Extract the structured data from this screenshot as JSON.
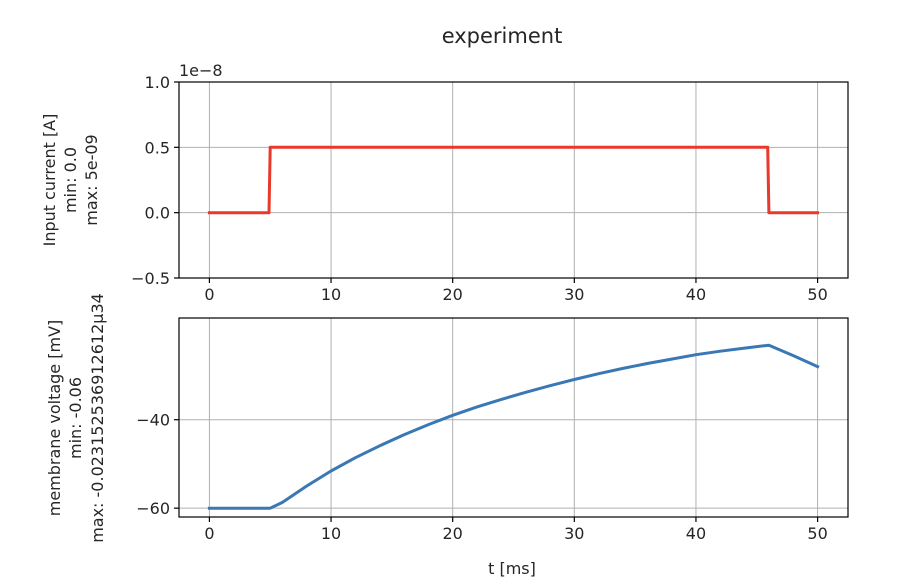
{
  "chart_data": [
    {
      "type": "line",
      "title": "experiment",
      "offset_text": "1e−8",
      "ylabel_lines": [
        "Input current [A]",
        "min: 0.0",
        "max: 5e-09"
      ],
      "xlim": [
        -2.5,
        52.5
      ],
      "ylim": [
        -0.5,
        1.0
      ],
      "xticks": [
        0,
        10,
        20,
        30,
        40,
        50
      ],
      "xtick_labels": [
        "0",
        "10",
        "20",
        "30",
        "40",
        "50"
      ],
      "yticks": [
        -0.5,
        0.0,
        0.5,
        1.0
      ],
      "ytick_labels": [
        "−0.5",
        "0.0",
        "0.5",
        "1.0"
      ],
      "grid": true,
      "series": [
        {
          "color": "#e8392b",
          "x": [
            0,
            4.9,
            5.0,
            45.9,
            46.0,
            50
          ],
          "y": [
            0.0,
            0.0,
            0.5,
            0.5,
            0.0,
            0.0
          ]
        }
      ]
    },
    {
      "type": "line",
      "xlabel": "t [ms]",
      "ylabel_lines": [
        "membrane voltage [mV]",
        "min: -0.06",
        "max: -0.023152536912612µ34"
      ],
      "xlim": [
        -2.5,
        52.5
      ],
      "ylim": [
        -62,
        -17
      ],
      "xticks": [
        0,
        10,
        20,
        30,
        40,
        50
      ],
      "xtick_labels": [
        "0",
        "10",
        "20",
        "30",
        "40",
        "50"
      ],
      "yticks": [
        -60,
        -40
      ],
      "ytick_labels": [
        "−60",
        "−40"
      ],
      "grid": true,
      "series": [
        {
          "color": "#3a78b5",
          "x": [
            0,
            5,
            6,
            8,
            10,
            12,
            14,
            16,
            18,
            20,
            22,
            24,
            26,
            28,
            30,
            32,
            34,
            36,
            38,
            40,
            42,
            44,
            46,
            48,
            50
          ],
          "y": [
            -60,
            -60,
            -58.7,
            -55.0,
            -51.6,
            -48.6,
            -45.9,
            -43.4,
            -41.1,
            -39.0,
            -37.1,
            -35.4,
            -33.8,
            -32.3,
            -30.9,
            -29.6,
            -28.4,
            -27.3,
            -26.3,
            -25.3,
            -24.5,
            -23.8,
            -23.15,
            -25.5,
            -28.0
          ]
        }
      ]
    }
  ]
}
